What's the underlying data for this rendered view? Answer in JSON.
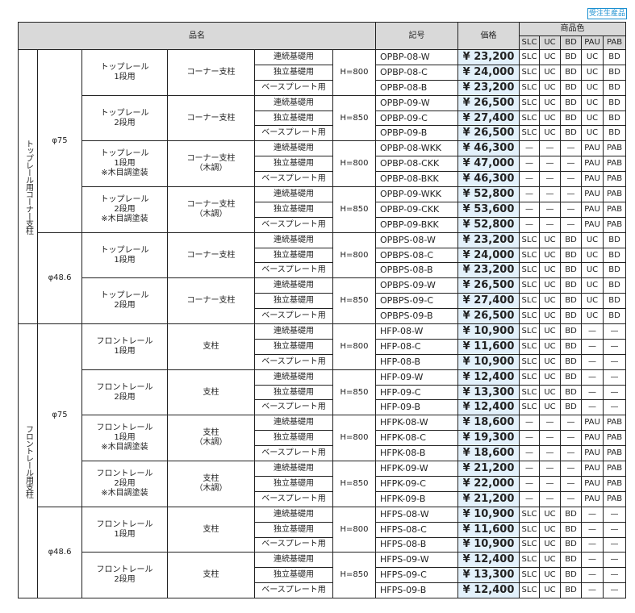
{
  "badge": "受注生産品",
  "header": {
    "name": "品名",
    "code": "記号",
    "price": "価格",
    "colors_title": "商品色",
    "colors": [
      "SLC",
      "UC",
      "BD",
      "PAU",
      "PAB"
    ]
  },
  "sections": [
    {
      "label": "トップレール用コーナー支柱",
      "subs": [
        {
          "dia": "φ75",
          "groups": [
            {
              "name": "トップレール\n1段用",
              "post": "コーナー支柱",
              "height": "H=800",
              "rows": [
                {
                  "base": "連続基礎用",
                  "code": "OPBP-08-W",
                  "price": "¥ 23,200",
                  "colors": [
                    "SLC",
                    "UC",
                    "BD",
                    "UC",
                    "BD"
                  ]
                },
                {
                  "base": "独立基礎用",
                  "code": "OPBP-08-C",
                  "price": "¥ 24,000",
                  "colors": [
                    "SLC",
                    "UC",
                    "BD",
                    "UC",
                    "BD"
                  ]
                },
                {
                  "base": "ベースプレート用",
                  "code": "OPBP-08-B",
                  "price": "¥ 23,200",
                  "colors": [
                    "SLC",
                    "UC",
                    "BD",
                    "UC",
                    "BD"
                  ]
                }
              ]
            },
            {
              "name": "トップレール\n2段用",
              "post": "コーナー支柱",
              "height": "H=850",
              "rows": [
                {
                  "base": "連続基礎用",
                  "code": "OPBP-09-W",
                  "price": "¥ 26,500",
                  "colors": [
                    "SLC",
                    "UC",
                    "BD",
                    "UC",
                    "BD"
                  ]
                },
                {
                  "base": "独立基礎用",
                  "code": "OPBP-09-C",
                  "price": "¥ 27,400",
                  "colors": [
                    "SLC",
                    "UC",
                    "BD",
                    "UC",
                    "BD"
                  ]
                },
                {
                  "base": "ベースプレート用",
                  "code": "OPBP-09-B",
                  "price": "¥ 26,500",
                  "colors": [
                    "SLC",
                    "UC",
                    "BD",
                    "UC",
                    "BD"
                  ]
                }
              ]
            },
            {
              "name": "トップレール\n1段用\n※木目調塗装",
              "post": "コーナー支柱\n（木調）",
              "height": "H=800",
              "rows": [
                {
                  "base": "連続基礎用",
                  "code": "OPBP-08-WKK",
                  "price": "¥ 46,300",
                  "colors": [
                    "—",
                    "—",
                    "—",
                    "PAU",
                    "PAB"
                  ]
                },
                {
                  "base": "独立基礎用",
                  "code": "OPBP-08-CKK",
                  "price": "¥ 47,000",
                  "colors": [
                    "—",
                    "—",
                    "—",
                    "PAU",
                    "PAB"
                  ]
                },
                {
                  "base": "ベースプレート用",
                  "code": "OPBP-08-BKK",
                  "price": "¥ 46,300",
                  "colors": [
                    "—",
                    "—",
                    "—",
                    "PAU",
                    "PAB"
                  ]
                }
              ]
            },
            {
              "name": "トップレール\n2段用\n※木目調塗装",
              "post": "コーナー支柱\n（木調）",
              "height": "H=850",
              "rows": [
                {
                  "base": "連続基礎用",
                  "code": "OPBP-09-WKK",
                  "price": "¥ 52,800",
                  "colors": [
                    "—",
                    "—",
                    "—",
                    "PAU",
                    "PAB"
                  ]
                },
                {
                  "base": "独立基礎用",
                  "code": "OPBP-09-CKK",
                  "price": "¥ 53,600",
                  "colors": [
                    "—",
                    "—",
                    "—",
                    "PAU",
                    "PAB"
                  ]
                },
                {
                  "base": "ベースプレート用",
                  "code": "OPBP-09-BKK",
                  "price": "¥ 52,800",
                  "colors": [
                    "—",
                    "—",
                    "—",
                    "PAU",
                    "PAB"
                  ]
                }
              ]
            }
          ]
        },
        {
          "dia": "φ48.6",
          "groups": [
            {
              "name": "トップレール\n1段用",
              "post": "コーナー支柱",
              "height": "H=800",
              "rows": [
                {
                  "base": "連続基礎用",
                  "code": "OPBPS-08-W",
                  "price": "¥ 23,200",
                  "colors": [
                    "SLC",
                    "UC",
                    "BD",
                    "UC",
                    "BD"
                  ]
                },
                {
                  "base": "独立基礎用",
                  "code": "OPBPS-08-C",
                  "price": "¥ 24,000",
                  "colors": [
                    "SLC",
                    "UC",
                    "BD",
                    "UC",
                    "BD"
                  ]
                },
                {
                  "base": "ベースプレート用",
                  "code": "OPBPS-08-B",
                  "price": "¥ 23,200",
                  "colors": [
                    "SLC",
                    "UC",
                    "BD",
                    "UC",
                    "BD"
                  ]
                }
              ]
            },
            {
              "name": "トップレール\n2段用",
              "post": "コーナー支柱",
              "height": "H=850",
              "rows": [
                {
                  "base": "連続基礎用",
                  "code": "OPBPS-09-W",
                  "price": "¥ 26,500",
                  "colors": [
                    "SLC",
                    "UC",
                    "BD",
                    "UC",
                    "BD"
                  ]
                },
                {
                  "base": "独立基礎用",
                  "code": "OPBPS-09-C",
                  "price": "¥ 27,400",
                  "colors": [
                    "SLC",
                    "UC",
                    "BD",
                    "UC",
                    "BD"
                  ]
                },
                {
                  "base": "ベースプレート用",
                  "code": "OPBPS-09-B",
                  "price": "¥ 26,500",
                  "colors": [
                    "SLC",
                    "UC",
                    "BD",
                    "UC",
                    "BD"
                  ]
                }
              ]
            }
          ]
        }
      ]
    },
    {
      "label": "フロントレール用支柱",
      "subs": [
        {
          "dia": "φ75",
          "groups": [
            {
              "name": "フロントレール\n1段用",
              "post": "支柱",
              "height": "H=800",
              "rows": [
                {
                  "base": "連続基礎用",
                  "code": "HFP-08-W",
                  "price": "¥ 10,900",
                  "colors": [
                    "SLC",
                    "UC",
                    "BD",
                    "—",
                    "—"
                  ]
                },
                {
                  "base": "独立基礎用",
                  "code": "HFP-08-C",
                  "price": "¥ 11,600",
                  "colors": [
                    "SLC",
                    "UC",
                    "BD",
                    "—",
                    "—"
                  ]
                },
                {
                  "base": "ベースプレート用",
                  "code": "HFP-08-B",
                  "price": "¥ 10,900",
                  "colors": [
                    "SLC",
                    "UC",
                    "BD",
                    "—",
                    "—"
                  ]
                }
              ]
            },
            {
              "name": "フロントレール\n2段用",
              "post": "支柱",
              "height": "H=850",
              "rows": [
                {
                  "base": "連続基礎用",
                  "code": "HFP-09-W",
                  "price": "¥ 12,400",
                  "colors": [
                    "SLC",
                    "UC",
                    "BD",
                    "—",
                    "—"
                  ]
                },
                {
                  "base": "独立基礎用",
                  "code": "HFP-09-C",
                  "price": "¥ 13,300",
                  "colors": [
                    "SLC",
                    "UC",
                    "BD",
                    "—",
                    "—"
                  ]
                },
                {
                  "base": "ベースプレート用",
                  "code": "HFP-09-B",
                  "price": "¥ 12,400",
                  "colors": [
                    "SLC",
                    "UC",
                    "BD",
                    "—",
                    "—"
                  ]
                }
              ]
            },
            {
              "name": "フロントレール\n1段用\n※木目調塗装",
              "post": "支柱\n（木調）",
              "height": "H=800",
              "rows": [
                {
                  "base": "連続基礎用",
                  "code": "HFPK-08-W",
                  "price": "¥ 18,600",
                  "colors": [
                    "—",
                    "—",
                    "—",
                    "PAU",
                    "PAB"
                  ]
                },
                {
                  "base": "独立基礎用",
                  "code": "HFPK-08-C",
                  "price": "¥ 19,300",
                  "colors": [
                    "—",
                    "—",
                    "—",
                    "PAU",
                    "PAB"
                  ]
                },
                {
                  "base": "ベースプレート用",
                  "code": "HFPK-08-B",
                  "price": "¥ 18,600",
                  "colors": [
                    "—",
                    "—",
                    "—",
                    "PAU",
                    "PAB"
                  ]
                }
              ]
            },
            {
              "name": "フロントレール\n2段用\n※木目調塗装",
              "post": "支柱\n（木調）",
              "height": "H=850",
              "rows": [
                {
                  "base": "連続基礎用",
                  "code": "HFPK-09-W",
                  "price": "¥ 21,200",
                  "colors": [
                    "—",
                    "—",
                    "—",
                    "PAU",
                    "PAB"
                  ]
                },
                {
                  "base": "独立基礎用",
                  "code": "HFPK-09-C",
                  "price": "¥ 22,000",
                  "colors": [
                    "—",
                    "—",
                    "—",
                    "PAU",
                    "PAB"
                  ]
                },
                {
                  "base": "ベースプレート用",
                  "code": "HFPK-09-B",
                  "price": "¥ 21,200",
                  "colors": [
                    "—",
                    "—",
                    "—",
                    "PAU",
                    "PAB"
                  ]
                }
              ]
            }
          ]
        },
        {
          "dia": "φ48.6",
          "groups": [
            {
              "name": "フロントレール\n1段用",
              "post": "支柱",
              "height": "H=800",
              "rows": [
                {
                  "base": "連続基礎用",
                  "code": "HFPS-08-W",
                  "price": "¥ 10,900",
                  "colors": [
                    "SLC",
                    "UC",
                    "BD",
                    "—",
                    "—"
                  ]
                },
                {
                  "base": "独立基礎用",
                  "code": "HFPS-08-C",
                  "price": "¥ 11,600",
                  "colors": [
                    "SLC",
                    "UC",
                    "BD",
                    "—",
                    "—"
                  ]
                },
                {
                  "base": "ベースプレート用",
                  "code": "HFPS-08-B",
                  "price": "¥ 10,900",
                  "colors": [
                    "SLC",
                    "UC",
                    "BD",
                    "—",
                    "—"
                  ]
                }
              ]
            },
            {
              "name": "フロントレール\n2段用",
              "post": "支柱",
              "height": "H=850",
              "rows": [
                {
                  "base": "連続基礎用",
                  "code": "HFPS-09-W",
                  "price": "¥ 12,400",
                  "colors": [
                    "SLC",
                    "UC",
                    "BD",
                    "—",
                    "—"
                  ]
                },
                {
                  "base": "独立基礎用",
                  "code": "HFPS-09-C",
                  "price": "¥ 13,300",
                  "colors": [
                    "SLC",
                    "UC",
                    "BD",
                    "—",
                    "—"
                  ]
                },
                {
                  "base": "ベースプレート用",
                  "code": "HFPS-09-B",
                  "price": "¥ 12,400",
                  "colors": [
                    "SLC",
                    "UC",
                    "BD",
                    "—",
                    "—"
                  ]
                }
              ]
            }
          ]
        }
      ]
    }
  ]
}
